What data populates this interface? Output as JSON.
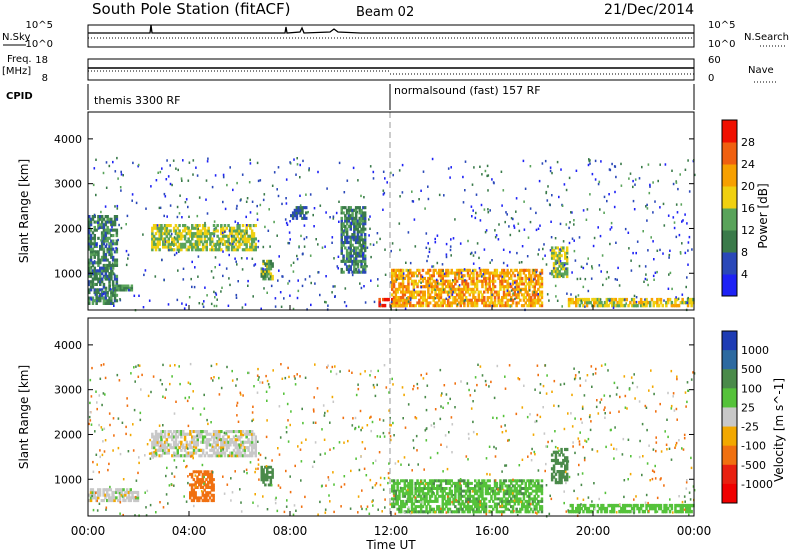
{
  "header": {
    "station": "South Pole Station (fitACF)",
    "beam": "Beam 02",
    "date": "21/Dec/2014"
  },
  "strips": {
    "nsky_label": "N.Sky",
    "nsky_ticks": [
      "10^5",
      "10^0"
    ],
    "nsearch_label": "N.Search",
    "nsearch_ticks": [
      "10^5",
      "10^0"
    ],
    "freq_label_1": "Freq.",
    "freq_label_2": "[MHz]",
    "freq_ticks": [
      "18",
      "8"
    ],
    "nave_label": "Nave",
    "nave_ticks": [
      "60",
      "0"
    ],
    "cpid_label": "CPID",
    "cpid_1": "themis 3300 RF",
    "cpid_2": "normalsound (fast) 157 RF"
  },
  "axes": {
    "x_ticks": [
      "00:00",
      "04:00",
      "08:00",
      "12:00",
      "16:00",
      "20:00",
      "00:00"
    ],
    "x_label": "Time UT",
    "y_label": "Slant Range [km]",
    "y_ticks": [
      "1000",
      "2000",
      "3000",
      "4000"
    ]
  },
  "power_scale": {
    "label": "Power [dB]",
    "ticks": [
      "4",
      "8",
      "12",
      "16",
      "20",
      "24",
      "28"
    ],
    "colors": [
      "#1e22f5",
      "#2a48b8",
      "#3a7a4a",
      "#59a35a",
      "#f0d010",
      "#f7a000",
      "#f06010",
      "#f01000"
    ]
  },
  "velocity_scale": {
    "label": "Velocity [m s^-1]",
    "ticks": [
      "1000",
      "500",
      "100",
      "25",
      "-25",
      "-100",
      "-500",
      "-1000"
    ],
    "colors": [
      "#1e3cb4",
      "#2d6aa0",
      "#4a8a4a",
      "#55c23a",
      "#c8c8c8",
      "#f2a800",
      "#f07010",
      "#e82010",
      "#f00000"
    ]
  },
  "chart_data": [
    {
      "type": "heatmap",
      "title": "Power",
      "xlabel": "Time UT",
      "ylabel": "Slant Range [km]",
      "x_range": [
        "00:00",
        "24:00"
      ],
      "ylim": [
        180,
        4600
      ],
      "colorbar": {
        "label": "Power [dB]",
        "range": [
          0,
          32
        ]
      },
      "features": [
        {
          "time": "00:00-01:10",
          "range_km": [
            300,
            2300
          ],
          "power_db": 10
        },
        {
          "time": "00:40-01:50",
          "range_km": [
            600,
            750
          ],
          "power_db": 12
        },
        {
          "time": "02:30-06:40",
          "range_km": [
            1500,
            2100
          ],
          "power_db": 16
        },
        {
          "time": "06:50-07:20",
          "range_km": [
            850,
            1300
          ],
          "power_db": 14
        },
        {
          "time": "08:00-08:40",
          "range_km": [
            2200,
            2500
          ],
          "power_db": 8
        },
        {
          "time": "10:00-11:00",
          "range_km": [
            1000,
            2500
          ],
          "power_db": 10
        },
        {
          "time": "11:30-12:30",
          "range_km": [
            250,
            450
          ],
          "power_db": 30
        },
        {
          "time": "12:00-18:00",
          "range_km": [
            250,
            1100
          ],
          "power_db": 22
        },
        {
          "time": "18:20-19:00",
          "range_km": [
            900,
            1600
          ],
          "power_db": 16
        },
        {
          "time": "19:00-24:00",
          "range_km": [
            250,
            450
          ],
          "power_db": 18
        }
      ]
    },
    {
      "type": "heatmap",
      "title": "Velocity",
      "xlabel": "Time UT",
      "ylabel": "Slant Range [km]",
      "x_range": [
        "00:00",
        "24:00"
      ],
      "ylim": [
        180,
        4600
      ],
      "colorbar": {
        "label": "Velocity [m s^-1]",
        "range": [
          -1000,
          1000
        ]
      },
      "features": [
        {
          "time": "00:00-02:00",
          "range_km": [
            500,
            800
          ],
          "velocity": 0
        },
        {
          "time": "02:30-06:40",
          "range_km": [
            1500,
            2100
          ],
          "velocity": 0
        },
        {
          "time": "04:00-05:00",
          "range_km": [
            500,
            1200
          ],
          "velocity": -300
        },
        {
          "time": "06:50-07:20",
          "range_km": [
            850,
            1300
          ],
          "velocity": 150
        },
        {
          "time": "12:00-18:00",
          "range_km": [
            250,
            1000
          ],
          "velocity": 80
        },
        {
          "time": "18:20-19:00",
          "range_km": [
            900,
            1700
          ],
          "velocity": 150
        },
        {
          "time": "19:00-24:00",
          "range_km": [
            250,
            450
          ],
          "velocity": 60
        }
      ]
    }
  ]
}
